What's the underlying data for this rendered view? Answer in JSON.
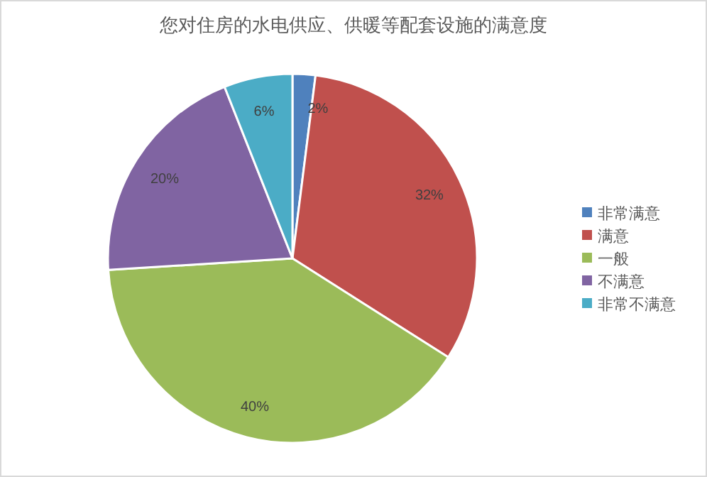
{
  "chart_data": {
    "type": "pie",
    "title": "您对住房的水电供应、供暖等配套设施的满意度",
    "categories": [
      "非常满意",
      "满意",
      "一般",
      "不满意",
      "非常不满意"
    ],
    "values": [
      2,
      32,
      40,
      20,
      6
    ],
    "colors": [
      "#4f81bd",
      "#c0504d",
      "#9bbb59",
      "#8064a2",
      "#4bacc6"
    ],
    "value_labels": [
      "2%",
      "32%",
      "40%",
      "20%",
      "6%"
    ],
    "legend": "right"
  }
}
